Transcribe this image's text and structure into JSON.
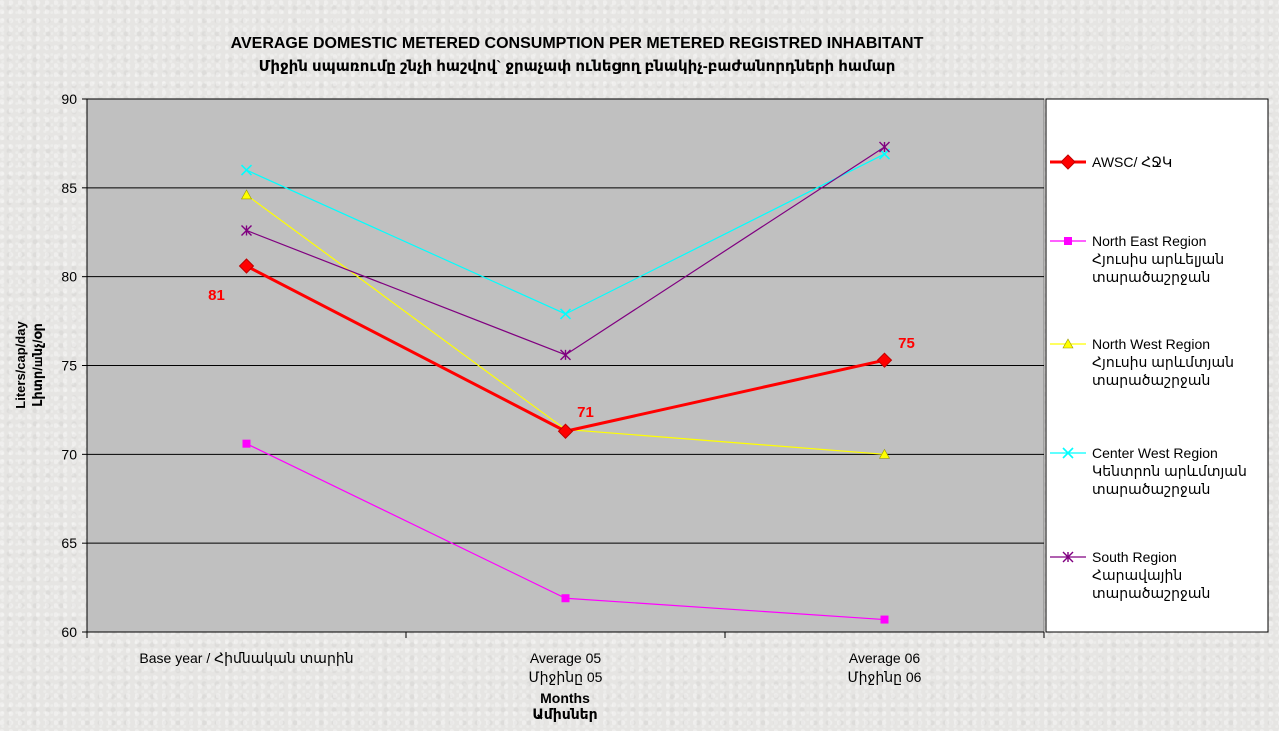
{
  "chart_data": {
    "type": "line",
    "title": "AVERAGE DOMESTIC METERED CONSUMPTION  PER METERED  REGISTRED INHABITANT",
    "subtitle": "Միջին սպառումը շնչի հաշվով` ջրաչափ ունեցող բնակիչ-բաժանորդների համար",
    "xlabel": [
      "Months",
      "Ամիսներ"
    ],
    "ylabel": [
      "Liters/cap/day",
      "Լիտր/шնչ/օր"
    ],
    "ylim": [
      60,
      90
    ],
    "yticks": [
      60,
      65,
      70,
      75,
      80,
      85,
      90
    ],
    "categories": [
      [
        "Base year / Հիմնական տարին"
      ],
      [
        "Average 05",
        "Միջինը 05"
      ],
      [
        "Average 06",
        "Միջինը 06"
      ]
    ],
    "grid": true,
    "legend_position": "right",
    "plot_background": "#c0c0c0",
    "series": [
      {
        "name": [
          "AWSC/ ՀՋԿ"
        ],
        "values": [
          80.6,
          71.3,
          75.3
        ],
        "color": "#ff0000",
        "marker": "diamond",
        "width": 3,
        "labels": [
          "81",
          "71",
          "75"
        ]
      },
      {
        "name": [
          "North East Region",
          "Հյուսիս արևելյան",
          "տարածաշրջան"
        ],
        "values": [
          70.6,
          61.9,
          60.7
        ],
        "color": "#ff00ff",
        "marker": "square",
        "width": 1.2
      },
      {
        "name": [
          "North West Region",
          "Հյուսիս արևմտյան",
          "տարածաշրջան"
        ],
        "values": [
          84.6,
          71.4,
          70.0
        ],
        "color": "#ffff00",
        "marker": "triangle",
        "width": 1.2
      },
      {
        "name": [
          "Center West Region",
          "Կենտրոն արևմտյան",
          "տարածաշրջան"
        ],
        "values": [
          86.0,
          77.9,
          86.9
        ],
        "color": "#00ffff",
        "marker": "x",
        "width": 1.2
      },
      {
        "name": [
          "South Region",
          "Հարավային",
          "տարածաշրջան"
        ],
        "values": [
          82.6,
          75.6,
          87.3
        ],
        "color": "#800080",
        "marker": "star",
        "width": 1.2
      }
    ]
  }
}
